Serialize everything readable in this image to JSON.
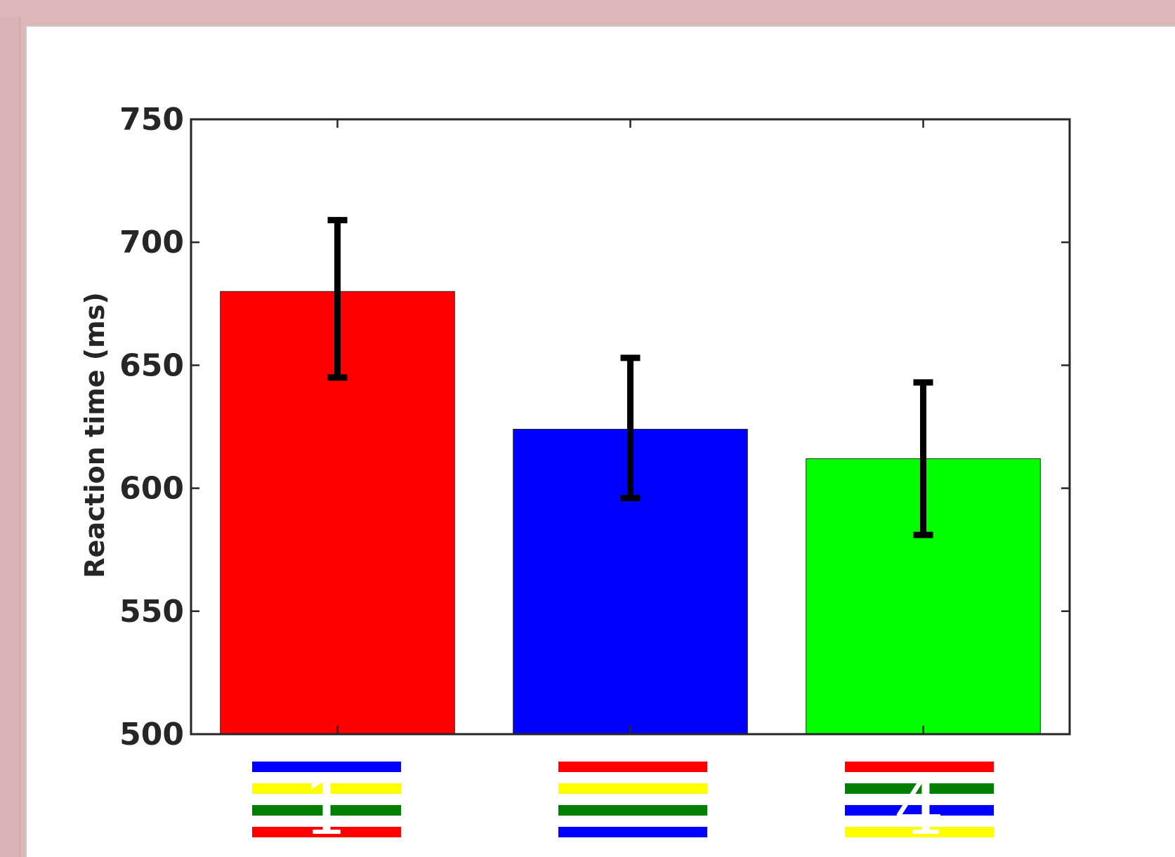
{
  "chart_data": {
    "type": "bar",
    "title": "",
    "xlabel": "",
    "ylabel": "Reaction time (ms)",
    "ylim": [
      500,
      750
    ],
    "yticks": [
      "500",
      "550",
      "600",
      "650",
      "700",
      "750"
    ],
    "grid": false,
    "categories": [
      {
        "stripe_colors": [
          "#0000ff",
          "#ffff00",
          "#008000",
          "#ff0000"
        ],
        "digit": "1"
      },
      {
        "stripe_colors": [
          "#ff0000",
          "#ffff00",
          "#008000",
          "#0000ff"
        ],
        "digit": ""
      },
      {
        "stripe_colors": [
          "#ff0000",
          "#008000",
          "#0000ff",
          "#ffff00"
        ],
        "digit": "4"
      }
    ],
    "values": [
      680,
      624,
      612
    ],
    "error_low": [
      645,
      596,
      581
    ],
    "error_high": [
      709,
      653,
      643
    ],
    "bar_colors": [
      "#ff0000",
      "#0000ff",
      "#00ff00"
    ]
  }
}
